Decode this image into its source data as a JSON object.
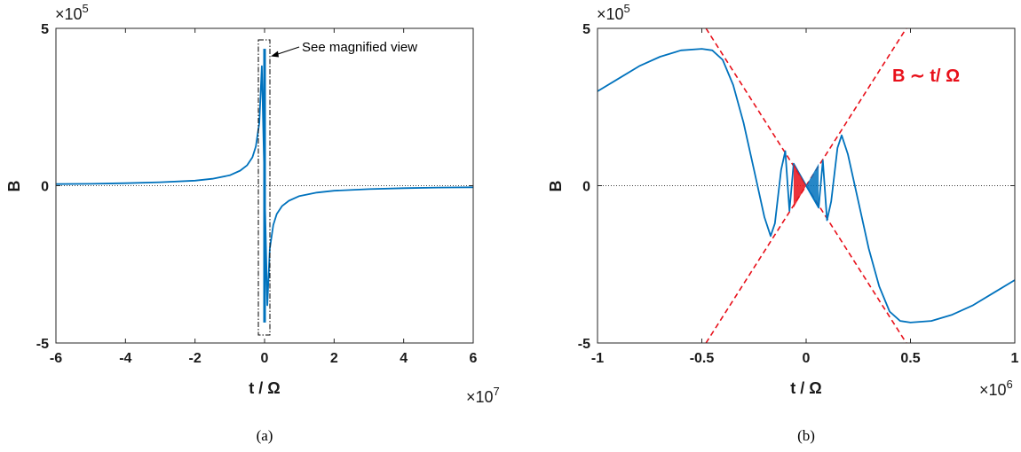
{
  "colors": {
    "series": "#0072bd",
    "asymptote": "#e8101a",
    "axes": "#262626",
    "zero_line": "#000000"
  },
  "panels": [
    {
      "caption": "(a)",
      "xlabel": "t / Ω",
      "ylabel": "B",
      "x_exponent": "×10",
      "x_exponent_power": "7",
      "y_exponent": "×10",
      "y_exponent_power": "5",
      "xticks": [
        "-6",
        "-4",
        "-2",
        "0",
        "2",
        "4",
        "6"
      ],
      "yticks": [
        "-5",
        "0",
        "5"
      ],
      "annotation": "See magnified view"
    },
    {
      "caption": "(b)",
      "xlabel": "t / Ω",
      "ylabel": "B",
      "x_exponent": "×10",
      "x_exponent_power": "6",
      "y_exponent": "×10",
      "y_exponent_power": "5",
      "xticks": [
        "-1",
        "-0.5",
        "0",
        "0.5",
        "1"
      ],
      "yticks": [
        "-5",
        "0",
        "5"
      ],
      "legend_text": "B ∼ t/ Ω"
    }
  ],
  "chart_data": [
    {
      "type": "line",
      "title": "",
      "xlabel": "t / Ω",
      "ylabel": "B",
      "x_scale": "×10^7",
      "y_scale": "×10^5",
      "xlim": [
        -6,
        6
      ],
      "ylim": [
        -5,
        5
      ],
      "grid": false,
      "zero_line": "dotted",
      "series": [
        {
          "x": [
            -6,
            -5,
            -4,
            -3,
            -2,
            -1.5,
            -1,
            -0.7,
            -0.5,
            -0.35,
            -0.25,
            -0.15,
            -0.08,
            0,
            0.08,
            0.15,
            0.25,
            0.35,
            0.5,
            0.7,
            1,
            1.5,
            2,
            3,
            4,
            5,
            6
          ],
          "y": [
            0.05,
            0.06,
            0.08,
            0.11,
            0.16,
            0.22,
            0.33,
            0.48,
            0.65,
            0.9,
            1.25,
            2.0,
            3.8,
            0,
            -3.8,
            -2.0,
            -1.25,
            -0.9,
            -0.65,
            -0.48,
            -0.33,
            -0.22,
            -0.16,
            -0.11,
            -0.08,
            -0.06,
            -0.05
          ]
        }
      ],
      "annotations": [
        "See magnified view"
      ]
    },
    {
      "type": "line",
      "title": "",
      "xlabel": "t / Ω",
      "ylabel": "B",
      "x_scale": "×10^6",
      "y_scale": "×10^5",
      "xlim": [
        -1,
        1
      ],
      "ylim": [
        -5,
        5
      ],
      "grid": false,
      "zero_line": "dotted",
      "series": [
        {
          "x": [
            -1,
            -0.9,
            -0.8,
            -0.7,
            -0.6,
            -0.5,
            -0.45,
            -0.4,
            -0.35,
            -0.3,
            -0.25,
            -0.2,
            -0.17,
            -0.15,
            -0.12,
            -0.1,
            -0.08,
            -0.06,
            0,
            0.06,
            0.08,
            0.1,
            0.12,
            0.15,
            0.17,
            0.2,
            0.25,
            0.3,
            0.35,
            0.4,
            0.45,
            0.5,
            0.6,
            0.7,
            0.8,
            0.9,
            1
          ],
          "y": [
            3.0,
            3.4,
            3.8,
            4.1,
            4.3,
            4.35,
            4.3,
            4.0,
            3.2,
            2.0,
            0.5,
            -1.0,
            -1.6,
            -1.2,
            0.5,
            1.1,
            -0.8,
            0.7,
            0,
            -0.7,
            0.8,
            -1.1,
            -0.5,
            1.2,
            1.6,
            1.0,
            -0.5,
            -2.0,
            -3.2,
            -4.0,
            -4.3,
            -4.35,
            -4.3,
            -4.1,
            -3.8,
            -3.4,
            -3.0
          ]
        }
      ],
      "asymptotes": [
        {
          "name": "B ∼ t/ Ω",
          "x": [
            -0.48,
            0.48
          ],
          "y": [
            5,
            -5
          ]
        },
        {
          "name": "B ∼ t/ Ω",
          "x": [
            -0.48,
            0.48
          ],
          "y": [
            -5,
            5
          ]
        }
      ]
    }
  ]
}
